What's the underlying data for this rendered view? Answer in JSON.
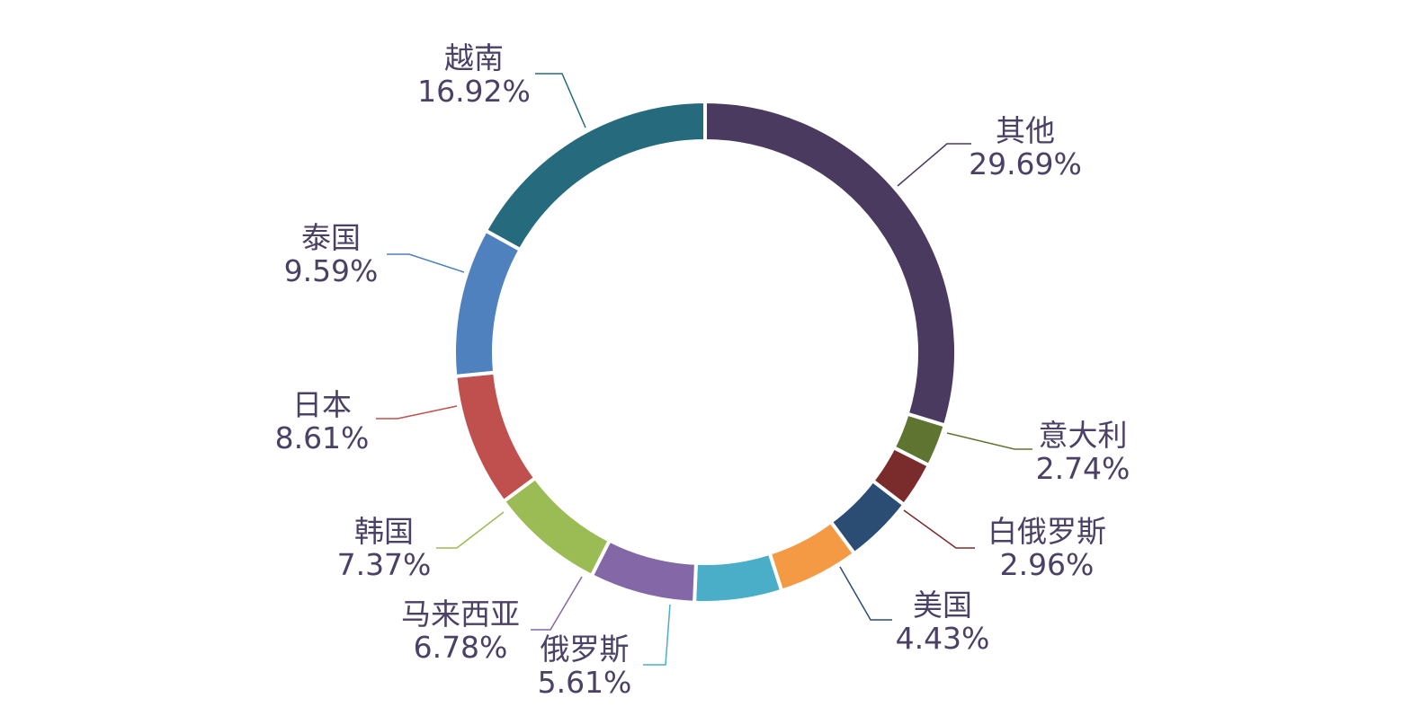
{
  "chart_data": {
    "type": "pie",
    "donut": true,
    "slices": [
      {
        "name": "其他",
        "value": 29.69,
        "label": "29.69%",
        "color": "#4a3a60"
      },
      {
        "name": "意大利",
        "value": 2.74,
        "label": "2.74%",
        "color": "#5f7431"
      },
      {
        "name": "白俄罗斯",
        "value": 2.96,
        "label": "2.96%",
        "color": "#7a2b2b"
      },
      {
        "name": "美国",
        "value": 4.43,
        "label": "4.43%",
        "color": "#2b4d74"
      },
      {
        "name": "",
        "value": 5.2,
        "label": "",
        "color": "#f59a44"
      },
      {
        "name": "俄罗斯",
        "value": 5.61,
        "label": "5.61%",
        "color": "#4aaec8"
      },
      {
        "name": "马来西亚",
        "value": 6.78,
        "label": "6.78%",
        "color": "#8367a7"
      },
      {
        "name": "韩国",
        "value": 7.37,
        "label": "7.37%",
        "color": "#9bbb54"
      },
      {
        "name": "日本",
        "value": 8.61,
        "label": "8.61%",
        "color": "#c0504d"
      },
      {
        "name": "泰国",
        "value": 9.59,
        "label": "9.59%",
        "color": "#4e81bd"
      },
      {
        "name": "越南",
        "value": 16.92,
        "label": "16.92%",
        "color": "#256b7d"
      }
    ],
    "start": "top",
    "direction": "clockwise",
    "legend": "none"
  }
}
